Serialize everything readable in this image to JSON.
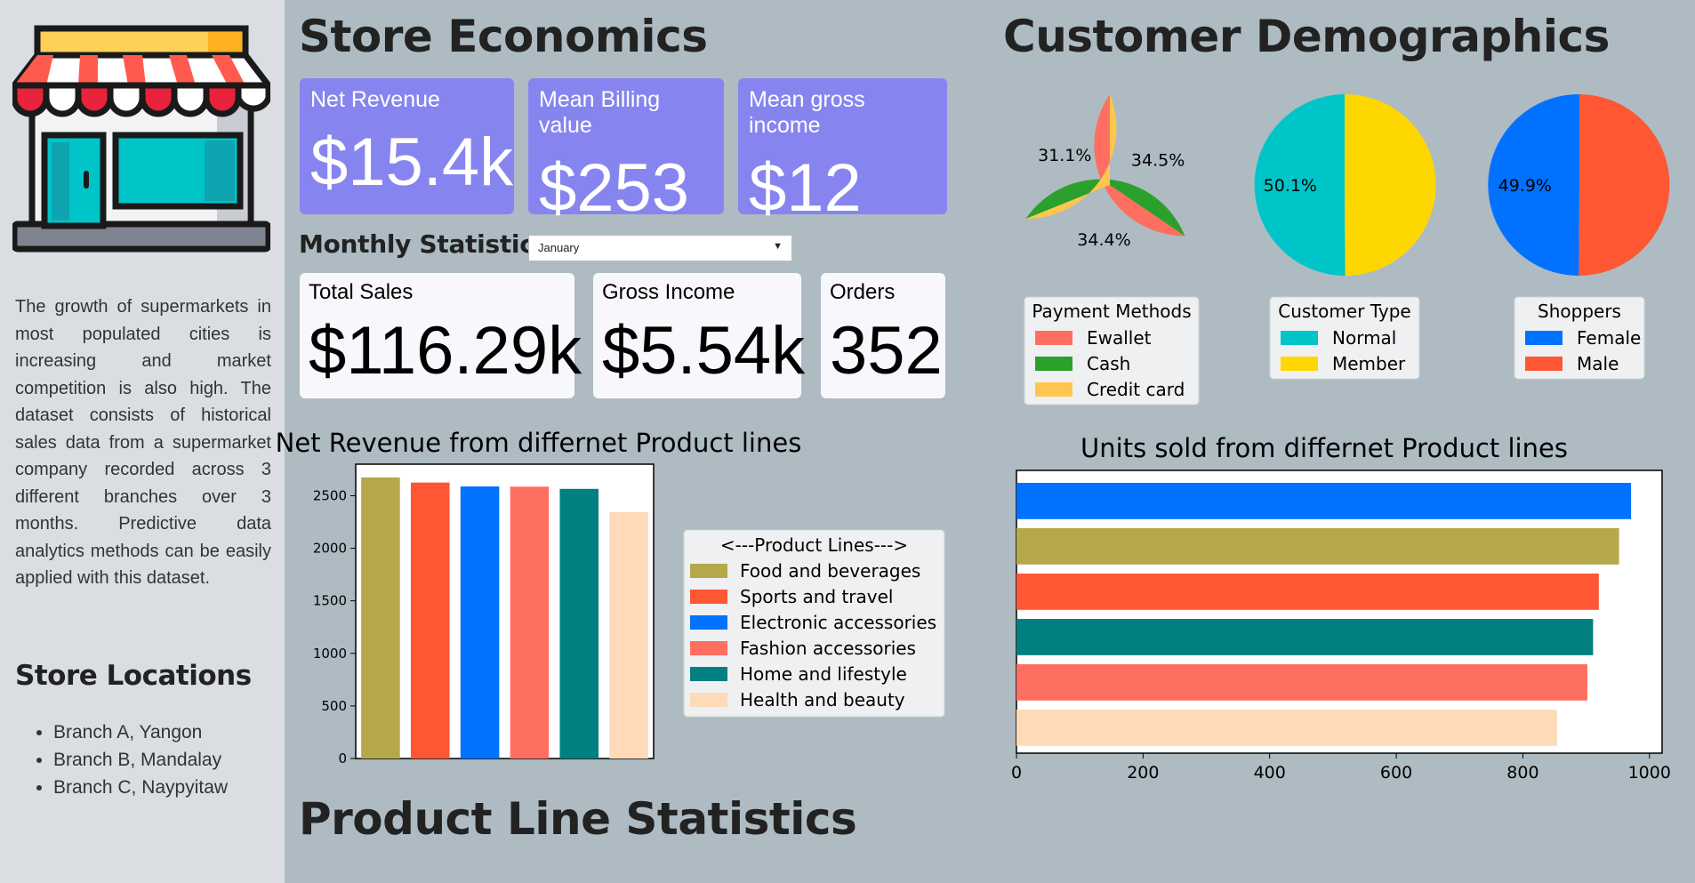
{
  "sidebar": {
    "description": "The growth of supermarkets in most populated cities is increasing and market competition is also high. The dataset consists of historical sales data from a supermarket company recorded across 3 different branches over 3 months. Predictive data analytics methods can be easily applied with this dataset.",
    "locations_title": "Store Locations",
    "locations": [
      "Branch A, Yangon",
      "Branch B, Mandalay",
      "Branch C, Naypyitaw"
    ]
  },
  "store_economics": {
    "title": "Store Economics",
    "kpis": [
      {
        "label": "Net Revenue",
        "value": "$15.4k"
      },
      {
        "label": "Mean Billing value",
        "value": "$253"
      },
      {
        "label": "Mean gross income",
        "value": "$12"
      }
    ]
  },
  "monthly": {
    "title": "Monthly Statistics",
    "selected_month": "January",
    "stats": [
      {
        "label": "Total Sales",
        "value": "$116.29k"
      },
      {
        "label": "Gross Income",
        "value": "$5.54k"
      },
      {
        "label": "Orders",
        "value": "352"
      }
    ]
  },
  "customer_demographics": {
    "title": "Customer Demographics"
  },
  "product_line_stats": {
    "title": "Product Line Statistics"
  },
  "colors": {
    "kpi_bg": "#8685ef",
    "stat_bg": "#f8f8fc",
    "page_bg": "#aebbc3",
    "sidebar_bg": "#dadee3"
  },
  "chart_data": [
    {
      "id": "payment",
      "type": "pie",
      "legend_title": "Payment Methods",
      "labels": [
        "Ewallet",
        "Cash",
        "Credit card"
      ],
      "values": [
        34.5,
        34.4,
        31.1
      ],
      "value_labels": [
        "34.5%",
        "34.4%",
        "31.1%"
      ],
      "colors": [
        "#ff6f61",
        "#2ca02c",
        "#ffc64f"
      ]
    },
    {
      "id": "customer_type",
      "type": "pie",
      "legend_title": "Customer Type",
      "labels": [
        "Normal",
        "Member"
      ],
      "values": [
        49.9,
        50.1
      ],
      "value_labels": [
        "49.9%",
        "50.1%"
      ],
      "colors": [
        "#00c5c8",
        "#ffd700"
      ]
    },
    {
      "id": "shoppers",
      "type": "pie",
      "legend_title": "Shoppers",
      "labels": [
        "Female",
        "Male"
      ],
      "values": [
        50.1,
        49.9
      ],
      "value_labels": [
        "50.1%",
        "49.9%"
      ],
      "colors": [
        "#0072ff",
        "#ff5733"
      ]
    },
    {
      "id": "net_revenue",
      "type": "bar",
      "title": "Net Revenue from differnet Product lines",
      "legend_title": "<---Product Lines--->",
      "categories": [
        "Food and beverages",
        "Sports and travel",
        "Electronic accessories",
        "Fashion accessories",
        "Home and lifestyle",
        "Health and beauty"
      ],
      "values": [
        2674,
        2625,
        2588,
        2586,
        2565,
        2343
      ],
      "colors": [
        "#b5a84a",
        "#ff5733",
        "#0072ff",
        "#ff6f61",
        "#008080",
        "#ffdab9"
      ],
      "yticks": [
        "0",
        "500",
        "1000",
        "1500",
        "2000",
        "2500"
      ],
      "ylim": [
        0,
        2800
      ]
    },
    {
      "id": "units_sold",
      "type": "bar",
      "orientation": "horizontal",
      "title": "Units sold from differnet Product lines",
      "categories": [
        "Electronic accessories",
        "Food and beverages",
        "Sports and travel",
        "Home and lifestyle",
        "Fashion accessories",
        "Health and beauty"
      ],
      "values": [
        971,
        952,
        920,
        911,
        902,
        854
      ],
      "colors": [
        "#0072ff",
        "#b5a84a",
        "#ff5733",
        "#008080",
        "#ff6f61",
        "#ffdab9"
      ],
      "xticks": [
        "0",
        "200",
        "400",
        "600",
        "800",
        "1000"
      ],
      "xlim": [
        0,
        1020
      ]
    }
  ]
}
